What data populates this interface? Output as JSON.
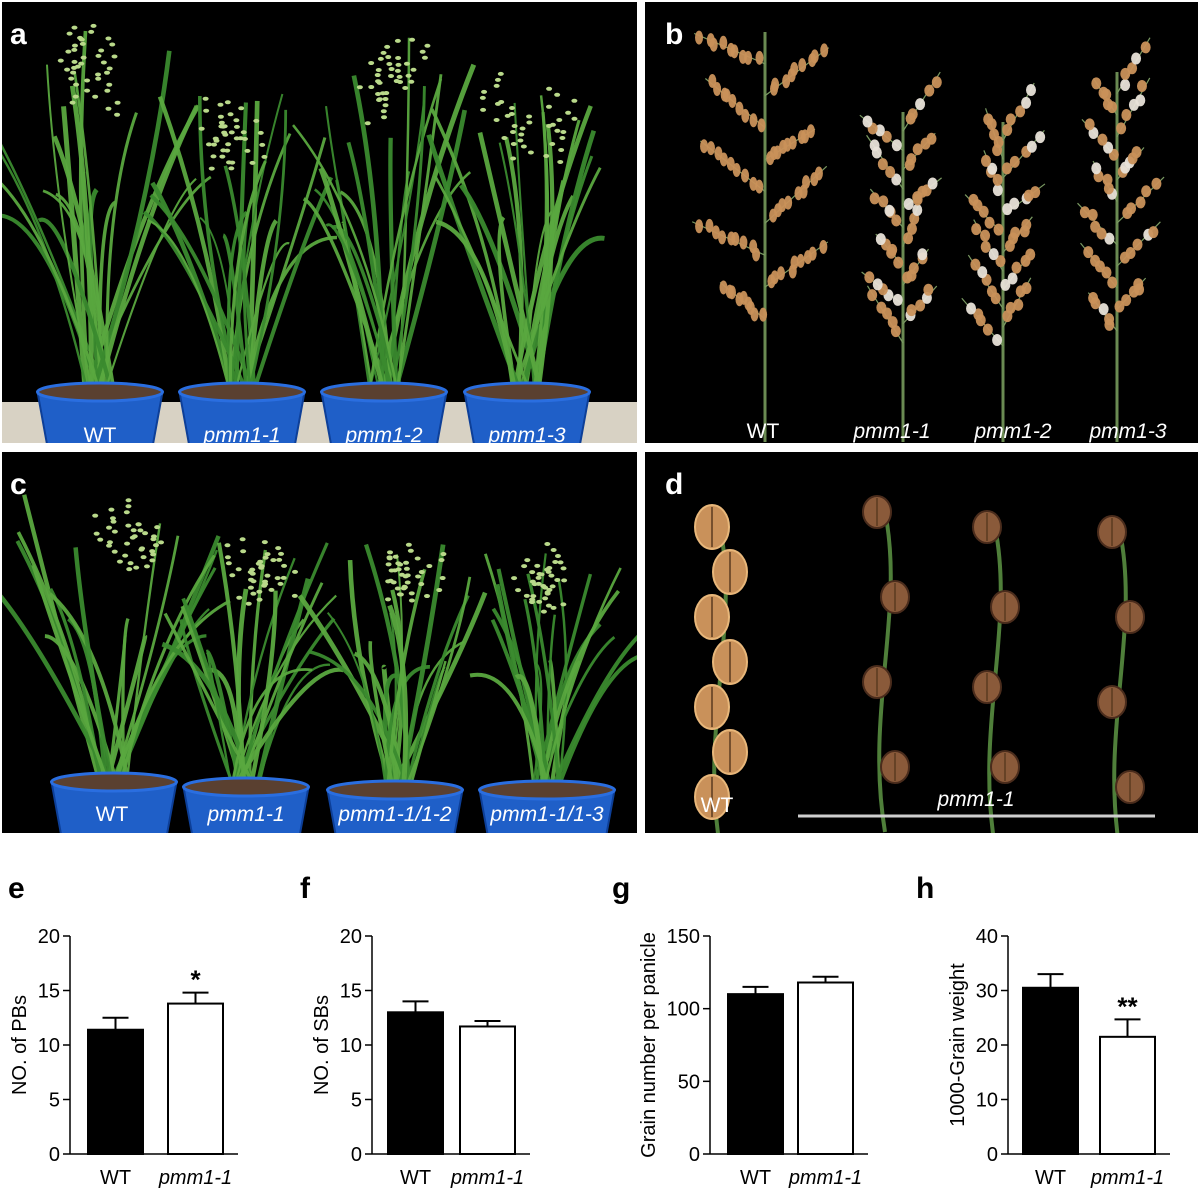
{
  "figure": {
    "panels": [
      {
        "label": "a",
        "captions": [
          "WT",
          "pmm1-1",
          "pmm1-2",
          "pmm1-3"
        ]
      },
      {
        "label": "b",
        "captions": [
          "WT",
          "pmm1-1",
          "pmm1-2",
          "pmm1-3"
        ]
      },
      {
        "label": "c",
        "captions": [
          "WT",
          "pmm1-1",
          "pmm1-1/1-2",
          "pmm1-1/1-3"
        ]
      },
      {
        "label": "d",
        "captions": [
          "WT",
          "pmm1-1"
        ]
      }
    ],
    "colors": {
      "photo_background": "#000000",
      "leaf_green": "#3a8a2e",
      "pot_blue": "#1f5fc8",
      "grain_tan": "#c9915a",
      "wt_bar": "#000000",
      "mutant_bar": "#ffffff"
    },
    "icons": [
      "rice-plant-icon",
      "rice-panicle-icon",
      "rice-grain-icon"
    ]
  },
  "chart_data": [
    {
      "panel": "e",
      "type": "bar",
      "categories": [
        "WT",
        "pmm1-1"
      ],
      "values": [
        11.4,
        13.8
      ],
      "errors": [
        1.1,
        1.0
      ],
      "significance": [
        "",
        "*"
      ],
      "ylabel": "NO. of  PBs",
      "ylim": [
        0,
        20
      ],
      "yticks": [
        "0",
        "5",
        "10",
        "15",
        "20"
      ],
      "tick_values": [
        0,
        5,
        10,
        15,
        20
      ]
    },
    {
      "panel": "f",
      "type": "bar",
      "categories": [
        "WT",
        "pmm1-1"
      ],
      "values": [
        13.0,
        11.7
      ],
      "errors": [
        1.0,
        0.5
      ],
      "significance": [
        "",
        ""
      ],
      "ylabel": "NO. of SBs",
      "ylim": [
        0,
        20
      ],
      "yticks": [
        "0",
        "5",
        "10",
        "15",
        "20"
      ],
      "tick_values": [
        0,
        5,
        10,
        15,
        20
      ]
    },
    {
      "panel": "g",
      "type": "bar",
      "categories": [
        "WT",
        "pmm1-1"
      ],
      "values": [
        110,
        118
      ],
      "errors": [
        5,
        4
      ],
      "significance": [
        "",
        ""
      ],
      "ylabel": "Grain number per panicle",
      "ylim": [
        0,
        150
      ],
      "yticks": [
        "0",
        "50",
        "100",
        "150"
      ],
      "tick_values": [
        0,
        50,
        100,
        150
      ]
    },
    {
      "panel": "h",
      "type": "bar",
      "categories": [
        "WT",
        "pmm1-1"
      ],
      "values": [
        30.5,
        21.5
      ],
      "errors": [
        2.5,
        3.2
      ],
      "significance": [
        "",
        "**"
      ],
      "ylabel": "1000-Grain weight",
      "ylim": [
        0,
        40
      ],
      "yticks": [
        "0",
        "10",
        "20",
        "30",
        "40"
      ],
      "tick_values": [
        0,
        10,
        20,
        30,
        40
      ]
    }
  ]
}
